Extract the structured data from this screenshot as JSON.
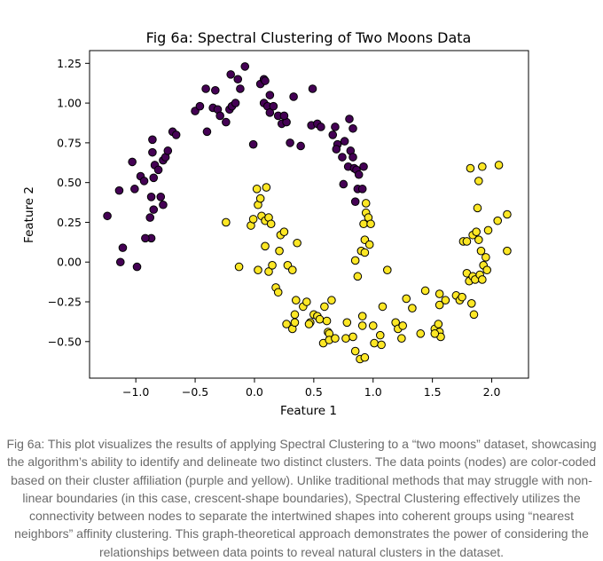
{
  "colors": {
    "cluster_0": "#440154",
    "cluster_1": "#fde725",
    "point_edge": "#000000",
    "caption_text": "#6b6b6b"
  },
  "chart_data": {
    "type": "scatter",
    "title": "Fig 6a: Spectral Clustering of Two Moons Data",
    "xlabel": "Feature 1",
    "ylabel": "Feature 2",
    "xlim": [
      -1.39,
      2.31
    ],
    "ylim": [
      -0.73,
      1.33
    ],
    "xticks": [
      -1.0,
      -0.5,
      0.0,
      0.5,
      1.0,
      1.5,
      2.0
    ],
    "xtick_labels": [
      "−1.0",
      "−0.5",
      "0.0",
      "0.5",
      "1.0",
      "1.5",
      "2.0"
    ],
    "yticks": [
      -0.5,
      -0.25,
      0.0,
      0.25,
      0.5,
      0.75,
      1.0,
      1.25
    ],
    "ytick_labels": [
      "−0.50",
      "−0.25",
      "0.00",
      "0.25",
      "0.50",
      "0.75",
      "1.00",
      "1.25"
    ],
    "grid": false,
    "legend": "none",
    "series": [
      {
        "color": "#440154",
        "points": [
          [
            -1.24,
            0.29
          ],
          [
            -1.14,
            0.45
          ],
          [
            -1.11,
            0.09
          ],
          [
            -1.13,
            0.0
          ],
          [
            -0.99,
            -0.03
          ],
          [
            -1.03,
            0.63
          ],
          [
            -1.01,
            0.46
          ],
          [
            -0.96,
            0.54
          ],
          [
            -0.93,
            0.51
          ],
          [
            -0.87,
            0.15
          ],
          [
            -0.92,
            0.15
          ],
          [
            -0.86,
            0.77
          ],
          [
            -0.86,
            0.69
          ],
          [
            -0.85,
            0.53
          ],
          [
            -0.87,
            0.41
          ],
          [
            -0.85,
            0.33
          ],
          [
            -0.88,
            0.28
          ],
          [
            -0.84,
            0.61
          ],
          [
            -0.81,
            0.58
          ],
          [
            -0.77,
            0.64
          ],
          [
            -0.75,
            0.66
          ],
          [
            -0.79,
            0.41
          ],
          [
            -0.77,
            0.36
          ],
          [
            -0.73,
            0.7
          ],
          [
            -0.69,
            0.82
          ],
          [
            -0.66,
            0.8
          ],
          [
            -0.5,
            0.95
          ],
          [
            -0.46,
            0.98
          ],
          [
            -0.41,
            1.09
          ],
          [
            -0.4,
            0.82
          ],
          [
            -0.35,
            0.97
          ],
          [
            -0.31,
            0.96
          ],
          [
            -0.33,
            1.08
          ],
          [
            -0.29,
            0.92
          ],
          [
            -0.24,
            0.88
          ],
          [
            -0.21,
            0.96
          ],
          [
            -0.19,
            0.98
          ],
          [
            -0.16,
            1.0
          ],
          [
            -0.12,
            1.09
          ],
          [
            -0.2,
            1.18
          ],
          [
            -0.14,
            1.15
          ],
          [
            -0.08,
            1.23
          ],
          [
            -0.01,
            0.74
          ],
          [
            0.05,
            1.12
          ],
          [
            0.08,
            1.15
          ],
          [
            0.09,
            1.14
          ],
          [
            0.08,
            1.0
          ],
          [
            0.11,
            0.98
          ],
          [
            0.13,
            0.94
          ],
          [
            0.16,
            0.98
          ],
          [
            0.13,
            1.05
          ],
          [
            0.2,
            0.92
          ],
          [
            0.23,
            0.87
          ],
          [
            0.27,
            0.88
          ],
          [
            0.25,
            0.92
          ],
          [
            0.3,
            0.75
          ],
          [
            0.33,
            1.04
          ],
          [
            0.39,
            0.73
          ],
          [
            0.49,
            1.09
          ],
          [
            0.48,
            0.86
          ],
          [
            0.53,
            0.87
          ],
          [
            0.56,
            0.85
          ],
          [
            0.68,
            0.85
          ],
          [
            0.66,
            0.8
          ],
          [
            0.7,
            0.74
          ],
          [
            0.69,
            0.71
          ],
          [
            0.74,
            0.66
          ],
          [
            0.75,
            0.49
          ],
          [
            0.79,
            0.6
          ],
          [
            0.8,
            0.9
          ],
          [
            0.83,
            0.84
          ],
          [
            0.81,
            0.7
          ],
          [
            0.83,
            0.66
          ],
          [
            0.84,
            0.59
          ],
          [
            0.86,
            0.58
          ],
          [
            0.88,
            0.55
          ],
          [
            0.92,
            0.6
          ],
          [
            0.87,
            0.46
          ],
          [
            0.91,
            0.46
          ],
          [
            0.85,
            0.38
          ],
          [
            0.76,
            0.76
          ]
        ]
      },
      {
        "color": "#fde725",
        "points": [
          [
            -0.24,
            0.25
          ],
          [
            -0.13,
            -0.03
          ],
          [
            -0.03,
            0.23
          ],
          [
            -0.01,
            0.27
          ],
          [
            0.03,
            0.36
          ],
          [
            0.02,
            0.46
          ],
          [
            0.05,
            0.4
          ],
          [
            0.1,
            0.47
          ],
          [
            0.06,
            0.29
          ],
          [
            0.09,
            0.26
          ],
          [
            0.12,
            0.28
          ],
          [
            0.14,
            0.24
          ],
          [
            0.03,
            -0.05
          ],
          [
            0.09,
            0.1
          ],
          [
            0.12,
            -0.06
          ],
          [
            0.15,
            -0.02
          ],
          [
            0.21,
            0.07
          ],
          [
            0.22,
            0.17
          ],
          [
            0.25,
            0.19
          ],
          [
            0.36,
            0.12
          ],
          [
            0.18,
            -0.16
          ],
          [
            0.2,
            -0.19
          ],
          [
            0.28,
            -0.02
          ],
          [
            0.32,
            -0.05
          ],
          [
            0.27,
            -0.39
          ],
          [
            0.32,
            -0.42
          ],
          [
            0.34,
            -0.38
          ],
          [
            0.34,
            -0.33
          ],
          [
            0.35,
            -0.24
          ],
          [
            0.41,
            -0.28
          ],
          [
            0.44,
            -0.25
          ],
          [
            0.47,
            -0.38
          ],
          [
            0.5,
            -0.33
          ],
          [
            0.53,
            -0.34
          ],
          [
            0.55,
            -0.36
          ],
          [
            0.59,
            -0.28
          ],
          [
            0.58,
            -0.51
          ],
          [
            0.62,
            -0.44
          ],
          [
            0.63,
            -0.45
          ],
          [
            0.63,
            -0.49
          ],
          [
            0.61,
            -0.37
          ],
          [
            0.65,
            -0.24
          ],
          [
            0.68,
            -0.48
          ],
          [
            0.77,
            -0.48
          ],
          [
            0.78,
            -0.38
          ],
          [
            0.83,
            -0.47
          ],
          [
            0.85,
            -0.56
          ],
          [
            0.89,
            -0.61
          ],
          [
            0.93,
            -0.6
          ],
          [
            0.91,
            -0.34
          ],
          [
            0.91,
            -0.4
          ],
          [
            0.87,
            -0.09
          ],
          [
            0.85,
            0.01
          ],
          [
            0.9,
            0.07
          ],
          [
            0.93,
            0.06
          ],
          [
            0.93,
            0.14
          ],
          [
            0.97,
            0.11
          ],
          [
            0.92,
            0.24
          ],
          [
            0.94,
            0.31
          ],
          [
            0.96,
            0.28
          ],
          [
            0.98,
            0.24
          ],
          [
            0.94,
            0.37
          ],
          [
            1.0,
            -0.4
          ],
          [
            1.01,
            -0.51
          ],
          [
            1.06,
            -0.46
          ],
          [
            1.07,
            -0.52
          ],
          [
            1.08,
            -0.28
          ],
          [
            1.12,
            -0.05
          ],
          [
            1.19,
            -0.38
          ],
          [
            1.21,
            -0.42
          ],
          [
            1.24,
            -0.48
          ],
          [
            1.25,
            -0.4
          ],
          [
            1.28,
            -0.23
          ],
          [
            1.33,
            -0.29
          ],
          [
            1.4,
            -0.45
          ],
          [
            1.44,
            -0.18
          ],
          [
            1.52,
            -0.42
          ],
          [
            1.55,
            -0.39
          ],
          [
            1.56,
            -0.44
          ],
          [
            1.57,
            -0.47
          ],
          [
            1.56,
            -0.27
          ],
          [
            1.56,
            -0.2
          ],
          [
            1.61,
            -0.24
          ],
          [
            1.7,
            -0.21
          ],
          [
            1.73,
            -0.24
          ],
          [
            1.75,
            -0.22
          ],
          [
            1.76,
            0.13
          ],
          [
            1.79,
            0.13
          ],
          [
            1.79,
            -0.07
          ],
          [
            1.81,
            -0.12
          ],
          [
            1.83,
            -0.26
          ],
          [
            1.84,
            -0.09
          ],
          [
            1.84,
            0.17
          ],
          [
            1.85,
            -0.33
          ],
          [
            1.86,
            -0.11
          ],
          [
            1.87,
            0.19
          ],
          [
            1.88,
            0.34
          ],
          [
            1.89,
            0.14
          ],
          [
            1.89,
            0.51
          ],
          [
            1.9,
            -0.08
          ],
          [
            1.91,
            0.07
          ],
          [
            1.92,
            0.6
          ],
          [
            1.92,
            -0.11
          ],
          [
            1.93,
            -0.02
          ],
          [
            1.95,
            0.03
          ],
          [
            1.96,
            -0.05
          ],
          [
            1.97,
            0.2
          ],
          [
            2.05,
            0.26
          ],
          [
            2.06,
            0.61
          ],
          [
            2.13,
            0.3
          ],
          [
            2.13,
            0.07
          ],
          [
            1.82,
            0.59
          ],
          [
            1.52,
            -0.45
          ],
          [
            0.46,
            -0.39
          ]
        ]
      }
    ]
  },
  "caption": "Fig 6a: This plot visualizes the results of applying Spectral Clustering to a “two moons” dataset, showcasing the algorithm’s ability to identify and delineate two distinct clusters. The data points (nodes) are color-coded based on their cluster affiliation (purple and yellow). Unlike traditional methods that may struggle with non-linear boundaries (in this case, crescent-shape boundaries), Spectral Clustering effectively utilizes the connectivity between nodes to separate the intertwined shapes into coherent groups using “nearest neighbors” affinity clustering. This graph-theoretical approach demonstrates the power of considering the relationships between data points to reveal natural clusters in the dataset."
}
